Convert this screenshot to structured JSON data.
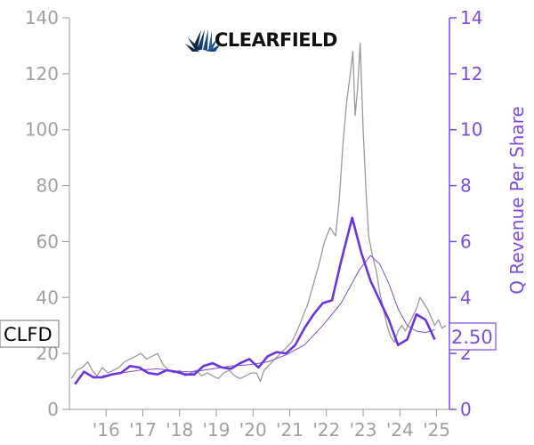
{
  "logo": {
    "text": "CLEARFIELD"
  },
  "ticker": "CLFD",
  "last_value_label": "2.50",
  "colors": {
    "price": "#999999",
    "revenue": "#6a35e0",
    "revenue_avg": "#7c4ddc",
    "left_axis": "#a0a0a0",
    "right_axis": "#7c4ddc"
  },
  "chart_data": {
    "type": "line",
    "ylabel_right": "Q Revenue Per Share",
    "x_ticks": [
      "'16",
      "'17",
      "'18",
      "'19",
      "'20",
      "'21",
      "'22",
      "'23",
      "'24",
      "'25"
    ],
    "x_tick_years": [
      2016,
      2017,
      2018,
      2019,
      2020,
      2021,
      2022,
      2023,
      2024,
      2025
    ],
    "xlim": [
      2015.0,
      2025.35
    ],
    "ylim_left": [
      0,
      140
    ],
    "yticks_left": [
      0,
      20,
      40,
      60,
      80,
      100,
      120,
      140
    ],
    "ylim_right": [
      0,
      14
    ],
    "yticks_right": [
      0,
      2,
      4,
      6,
      8,
      10,
      12,
      14
    ],
    "grid": false,
    "series": [
      {
        "axis": "left",
        "style": "price",
        "points": [
          [
            2015.05,
            11
          ],
          [
            2015.2,
            14
          ],
          [
            2015.35,
            15
          ],
          [
            2015.5,
            17
          ],
          [
            2015.62,
            14
          ],
          [
            2015.75,
            12
          ],
          [
            2015.9,
            15
          ],
          [
            2016.05,
            13
          ],
          [
            2016.2,
            14
          ],
          [
            2016.35,
            15
          ],
          [
            2016.5,
            17
          ],
          [
            2016.65,
            18
          ],
          [
            2016.8,
            19
          ],
          [
            2016.95,
            20
          ],
          [
            2017.1,
            18
          ],
          [
            2017.25,
            19
          ],
          [
            2017.4,
            20
          ],
          [
            2017.55,
            16
          ],
          [
            2017.7,
            14
          ],
          [
            2017.85,
            13
          ],
          [
            2018.0,
            14
          ],
          [
            2018.15,
            12
          ],
          [
            2018.3,
            13
          ],
          [
            2018.45,
            14
          ],
          [
            2018.6,
            12
          ],
          [
            2018.75,
            13
          ],
          [
            2018.9,
            12
          ],
          [
            2019.05,
            11
          ],
          [
            2019.2,
            13
          ],
          [
            2019.35,
            14
          ],
          [
            2019.5,
            12
          ],
          [
            2019.65,
            11
          ],
          [
            2019.8,
            12
          ],
          [
            2019.95,
            13
          ],
          [
            2020.1,
            13
          ],
          [
            2020.2,
            10
          ],
          [
            2020.3,
            14
          ],
          [
            2020.45,
            16
          ],
          [
            2020.6,
            18
          ],
          [
            2020.75,
            20
          ],
          [
            2020.9,
            22
          ],
          [
            2021.05,
            24
          ],
          [
            2021.2,
            28
          ],
          [
            2021.35,
            33
          ],
          [
            2021.5,
            38
          ],
          [
            2021.65,
            45
          ],
          [
            2021.8,
            52
          ],
          [
            2021.95,
            60
          ],
          [
            2022.1,
            65
          ],
          [
            2022.25,
            62
          ],
          [
            2022.35,
            75
          ],
          [
            2022.45,
            95
          ],
          [
            2022.55,
            110
          ],
          [
            2022.65,
            120
          ],
          [
            2022.72,
            128
          ],
          [
            2022.78,
            105
          ],
          [
            2022.85,
            115
          ],
          [
            2022.92,
            131
          ],
          [
            2023.0,
            100
          ],
          [
            2023.08,
            78
          ],
          [
            2023.15,
            62
          ],
          [
            2023.25,
            55
          ],
          [
            2023.35,
            50
          ],
          [
            2023.45,
            42
          ],
          [
            2023.55,
            36
          ],
          [
            2023.65,
            30
          ],
          [
            2023.75,
            26
          ],
          [
            2023.85,
            24
          ],
          [
            2023.95,
            28
          ],
          [
            2024.05,
            30
          ],
          [
            2024.15,
            28
          ],
          [
            2024.3,
            32
          ],
          [
            2024.45,
            36
          ],
          [
            2024.55,
            40
          ],
          [
            2024.65,
            38
          ],
          [
            2024.75,
            36
          ],
          [
            2024.85,
            33
          ],
          [
            2024.95,
            30
          ],
          [
            2025.05,
            32
          ],
          [
            2025.15,
            29
          ],
          [
            2025.25,
            30
          ]
        ]
      },
      {
        "axis": "right",
        "style": "revenue",
        "points": [
          [
            2015.15,
            0.9
          ],
          [
            2015.4,
            1.35
          ],
          [
            2015.65,
            1.15
          ],
          [
            2015.9,
            1.15
          ],
          [
            2016.15,
            1.25
          ],
          [
            2016.4,
            1.3
          ],
          [
            2016.65,
            1.55
          ],
          [
            2016.9,
            1.5
          ],
          [
            2017.15,
            1.3
          ],
          [
            2017.4,
            1.25
          ],
          [
            2017.65,
            1.4
          ],
          [
            2017.9,
            1.35
          ],
          [
            2018.15,
            1.25
          ],
          [
            2018.4,
            1.25
          ],
          [
            2018.65,
            1.55
          ],
          [
            2018.9,
            1.65
          ],
          [
            2019.15,
            1.5
          ],
          [
            2019.4,
            1.45
          ],
          [
            2019.65,
            1.65
          ],
          [
            2019.9,
            1.8
          ],
          [
            2020.15,
            1.5
          ],
          [
            2020.4,
            1.9
          ],
          [
            2020.65,
            2.05
          ],
          [
            2020.9,
            2.0
          ],
          [
            2021.15,
            2.3
          ],
          [
            2021.4,
            2.9
          ],
          [
            2021.65,
            3.4
          ],
          [
            2021.9,
            3.8
          ],
          [
            2022.15,
            3.9
          ],
          [
            2022.4,
            5.3
          ],
          [
            2022.7,
            6.85
          ],
          [
            2022.95,
            5.6
          ],
          [
            2023.2,
            4.6
          ],
          [
            2023.45,
            3.9
          ],
          [
            2023.7,
            3.2
          ],
          [
            2023.95,
            2.3
          ],
          [
            2024.2,
            2.5
          ],
          [
            2024.45,
            3.4
          ],
          [
            2024.7,
            3.2
          ],
          [
            2024.95,
            2.5
          ]
        ]
      },
      {
        "axis": "right",
        "style": "revenue_avg",
        "points": [
          [
            2015.9,
            1.2
          ],
          [
            2016.4,
            1.3
          ],
          [
            2016.9,
            1.4
          ],
          [
            2017.4,
            1.45
          ],
          [
            2017.9,
            1.35
          ],
          [
            2018.4,
            1.35
          ],
          [
            2018.9,
            1.45
          ],
          [
            2019.4,
            1.55
          ],
          [
            2019.9,
            1.6
          ],
          [
            2020.4,
            1.7
          ],
          [
            2020.9,
            1.95
          ],
          [
            2021.4,
            2.3
          ],
          [
            2021.9,
            3.0
          ],
          [
            2022.4,
            3.8
          ],
          [
            2022.9,
            5.0
          ],
          [
            2023.2,
            5.5
          ],
          [
            2023.45,
            5.2
          ],
          [
            2023.7,
            4.5
          ],
          [
            2023.95,
            3.6
          ],
          [
            2024.2,
            3.0
          ],
          [
            2024.45,
            2.8
          ],
          [
            2024.7,
            2.75
          ],
          [
            2024.95,
            2.85
          ]
        ]
      }
    ]
  }
}
